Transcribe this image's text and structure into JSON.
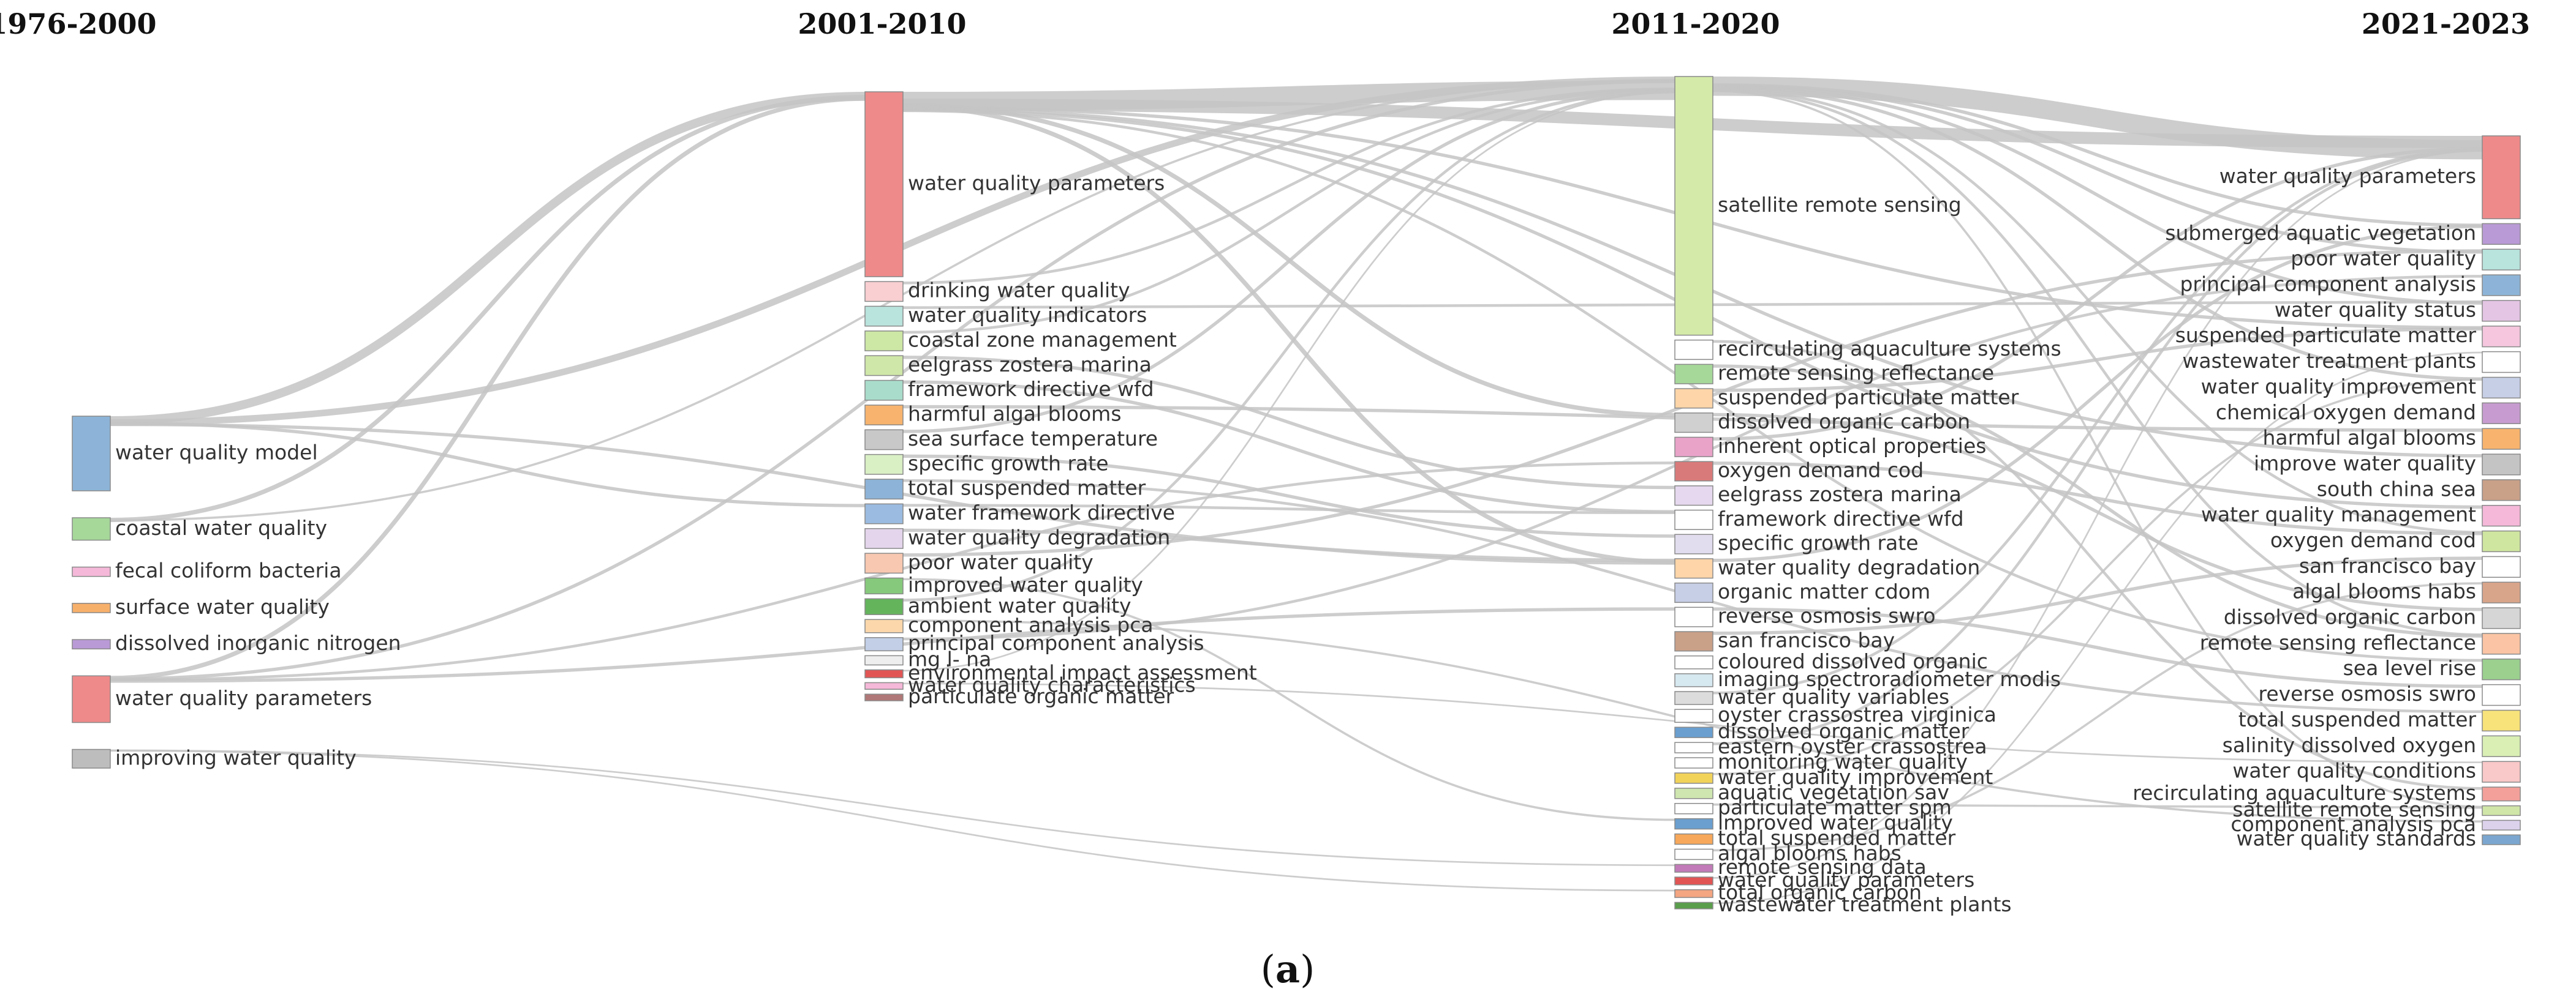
{
  "caption": {
    "prefix": "(",
    "letter": "a",
    "suffix": ")"
  },
  "columns": [
    {
      "period": "1976-2000",
      "nodes": [
        {
          "label": "water quality model",
          "value": 4,
          "color": "#8db4d8"
        },
        {
          "label": "coastal water quality",
          "value": 1.2,
          "color": "#a6d89a"
        },
        {
          "label": "fecal coliform bacteria",
          "value": 0.5,
          "color": "#f5b8d8"
        },
        {
          "label": "surface water quality",
          "value": 0.5,
          "color": "#f7b06a"
        },
        {
          "label": "dissolved inorganic nitrogen",
          "value": 0.5,
          "color": "#b99ad6"
        },
        {
          "label": "water quality parameters",
          "value": 2.5,
          "color": "#ef8a8a"
        },
        {
          "label": "improving water quality",
          "value": 1,
          "color": "#bdbdbd"
        }
      ]
    },
    {
      "period": "2001-2010",
      "nodes": [
        {
          "label": "water quality parameters",
          "value": 14,
          "color": "#ef8a8a"
        },
        {
          "label": "drinking water quality",
          "value": 1.5,
          "color": "#f9cfd2"
        },
        {
          "label": "water quality indicators",
          "value": 1.5,
          "color": "#b9e3dd"
        },
        {
          "label": "coastal zone management",
          "value": 1.5,
          "color": "#cde8a4"
        },
        {
          "label": "eelgrass zostera marina",
          "value": 1.5,
          "color": "#cfe7a8"
        },
        {
          "label": "framework directive wfd",
          "value": 1.5,
          "color": "#a9dccb"
        },
        {
          "label": "harmful algal blooms",
          "value": 1.5,
          "color": "#f8b46e"
        },
        {
          "label": "sea surface temperature",
          "value": 1.5,
          "color": "#c8c8c8"
        },
        {
          "label": "specific growth rate",
          "value": 1.5,
          "color": "#d9efc4"
        },
        {
          "label": "total suspended matter",
          "value": 1.5,
          "color": "#8db4d8"
        },
        {
          "label": "water framework directive",
          "value": 1.5,
          "color": "#9bbbe0"
        },
        {
          "label": "water quality degradation",
          "value": 1.5,
          "color": "#e4d5ec"
        },
        {
          "label": "poor water quality",
          "value": 1.5,
          "color": "#f8c8b0"
        },
        {
          "label": "improved water quality",
          "value": 1.2,
          "color": "#86c97c"
        },
        {
          "label": "ambient water quality",
          "value": 1.2,
          "color": "#64b45c"
        },
        {
          "label": "component analysis pca",
          "value": 1,
          "color": "#fbd7ab"
        },
        {
          "label": "principal component analysis",
          "value": 1,
          "color": "#c2cfe7"
        },
        {
          "label": "mg l- na",
          "value": 0.7,
          "color": "#eeeeee"
        },
        {
          "label": "environmental impact assessment",
          "value": 0.6,
          "color": "#e25555"
        },
        {
          "label": "water quality characteristics",
          "value": 0.5,
          "color": "#f5b8d8"
        },
        {
          "label": "particulate organic matter",
          "value": 0.5,
          "color": "#b07878"
        }
      ]
    },
    {
      "period": "2011-2020",
      "nodes": [
        {
          "label": "satellite remote sensing",
          "value": 20,
          "color": "#d4eaa8"
        },
        {
          "label": "recirculating aquaculture systems",
          "value": 1.5,
          "color": "#ffffff"
        },
        {
          "label": "remote sensing reflectance",
          "value": 1.5,
          "color": "#a6d89a"
        },
        {
          "label": "suspended particulate matter",
          "value": 1.5,
          "color": "#fdd5a8"
        },
        {
          "label": "dissolved organic carbon",
          "value": 1.5,
          "color": "#d0d0d0"
        },
        {
          "label": "inherent optical properties",
          "value": 1.5,
          "color": "#e9a3c9"
        },
        {
          "label": "oxygen demand cod",
          "value": 1.5,
          "color": "#d97a7a"
        },
        {
          "label": "eelgrass zostera marina",
          "value": 1.5,
          "color": "#e6d9ef"
        },
        {
          "label": "framework directive wfd",
          "value": 1.5,
          "color": "#ffffff"
        },
        {
          "label": "specific growth rate",
          "value": 1.5,
          "color": "#e2dcef"
        },
        {
          "label": "water quality degradation",
          "value": 1.5,
          "color": "#fdd5a8"
        },
        {
          "label": "organic matter cdom",
          "value": 1.5,
          "color": "#c6cfe6"
        },
        {
          "label": "reverse osmosis swro",
          "value": 1.5,
          "color": "#ffffff"
        },
        {
          "label": "san francisco bay",
          "value": 1.5,
          "color": "#c9a088"
        },
        {
          "label": "coloured dissolved organic",
          "value": 1,
          "color": "#ffffff"
        },
        {
          "label": "imaging spectroradiometer modis",
          "value": 1,
          "color": "#d6e8f0"
        },
        {
          "label": "water quality variables",
          "value": 1,
          "color": "#dcdcdc"
        },
        {
          "label": "oyster crassostrea virginica",
          "value": 1,
          "color": "#ffffff"
        },
        {
          "label": "dissolved organic matter",
          "value": 0.8,
          "color": "#6a9fd0"
        },
        {
          "label": "eastern oyster crassostrea",
          "value": 0.8,
          "color": "#ffffff"
        },
        {
          "label": "monitoring water quality",
          "value": 0.8,
          "color": "#ffffff"
        },
        {
          "label": "water quality improvement",
          "value": 0.8,
          "color": "#f2d35a"
        },
        {
          "label": "aquatic vegetation sav",
          "value": 0.8,
          "color": "#cfe6b0"
        },
        {
          "label": "particulate matter spm",
          "value": 0.8,
          "color": "#ffffff"
        },
        {
          "label": "improved water quality",
          "value": 0.8,
          "color": "#6a9fd0"
        },
        {
          "label": "total suspended matter",
          "value": 0.8,
          "color": "#f7a85a"
        },
        {
          "label": "algal blooms habs",
          "value": 0.8,
          "color": "#ffffff"
        },
        {
          "label": "remote sensing data",
          "value": 0.6,
          "color": "#c27bb8"
        },
        {
          "label": "water quality parameters",
          "value": 0.6,
          "color": "#e25555"
        },
        {
          "label": "total organic carbon",
          "value": 0.6,
          "color": "#f4a582"
        },
        {
          "label": "wastewater treatment plants",
          "value": 0.5,
          "color": "#5a9e4c"
        }
      ]
    },
    {
      "period": "2021-2023",
      "nodes": [
        {
          "label": "water quality parameters",
          "value": 6,
          "color": "#ef8a8a"
        },
        {
          "label": "submerged aquatic vegetation",
          "value": 1.5,
          "color": "#b99ad6"
        },
        {
          "label": "poor water quality",
          "value": 1.5,
          "color": "#b9e3dd"
        },
        {
          "label": "principal component analysis",
          "value": 1.5,
          "color": "#8db4d8"
        },
        {
          "label": "water quality status",
          "value": 1.5,
          "color": "#e4c5e4"
        },
        {
          "label": "suspended particulate matter",
          "value": 1.5,
          "color": "#f5c6de"
        },
        {
          "label": "wastewater treatment plants",
          "value": 1.5,
          "color": "#ffffff"
        },
        {
          "label": "water quality improvement",
          "value": 1.5,
          "color": "#c6cfe6"
        },
        {
          "label": "chemical oxygen demand",
          "value": 1.5,
          "color": "#c79bd0"
        },
        {
          "label": "harmful algal blooms",
          "value": 1.5,
          "color": "#f8b46e"
        },
        {
          "label": "improve water quality",
          "value": 1.5,
          "color": "#c4c4c4"
        },
        {
          "label": "south china sea",
          "value": 1.5,
          "color": "#c9a088"
        },
        {
          "label": "water quality management",
          "value": 1.5,
          "color": "#f5b8d8"
        },
        {
          "label": "oxygen demand cod",
          "value": 1.5,
          "color": "#cfe6a0"
        },
        {
          "label": "san francisco bay",
          "value": 1.5,
          "color": "#ffffff"
        },
        {
          "label": "algal blooms habs",
          "value": 1.5,
          "color": "#d9a58a"
        },
        {
          "label": "dissolved organic carbon",
          "value": 1.5,
          "color": "#d6d6d6"
        },
        {
          "label": "remote sensing reflectance",
          "value": 1.5,
          "color": "#fbc4a4"
        },
        {
          "label": "sea level rise",
          "value": 1.5,
          "color": "#9bd08f"
        },
        {
          "label": "reverse osmosis swro",
          "value": 1.5,
          "color": "#ffffff"
        },
        {
          "label": "total suspended matter",
          "value": 1.5,
          "color": "#f7e37a"
        },
        {
          "label": "salinity dissolved oxygen",
          "value": 1.5,
          "color": "#d9efb4"
        },
        {
          "label": "water quality conditions",
          "value": 1.5,
          "color": "#f9c8c8"
        },
        {
          "label": "recirculating aquaculture systems",
          "value": 1,
          "color": "#f3a09a"
        },
        {
          "label": "satellite remote sensing",
          "value": 0.7,
          "color": "#cfe6a8"
        },
        {
          "label": "component analysis pca",
          "value": 0.7,
          "color": "#dcd2ec"
        },
        {
          "label": "water quality standards",
          "value": 0.7,
          "color": "#7aa6cf"
        }
      ]
    }
  ],
  "links": [
    {
      "source": "0:0",
      "target": "1:0",
      "value": 1.6
    },
    {
      "source": "0:0",
      "target": "2:0",
      "value": 1.2
    },
    {
      "source": "0:0",
      "target": "1:10",
      "value": 0.6
    },
    {
      "source": "0:0",
      "target": "2:10",
      "value": 0.6
    },
    {
      "source": "0:1",
      "target": "1:0",
      "value": 0.8
    },
    {
      "source": "0:1",
      "target": "2:0",
      "value": 0.4
    },
    {
      "source": "0:5",
      "target": "1:0",
      "value": 0.8
    },
    {
      "source": "0:5",
      "target": "2:0",
      "value": 0.6
    },
    {
      "source": "0:5",
      "target": "2:6",
      "value": 0.5
    },
    {
      "source": "0:5",
      "target": "2:12",
      "value": 0.6
    },
    {
      "source": "0:6",
      "target": "2:27",
      "value": 0.3
    },
    {
      "source": "0:6",
      "target": "2:29",
      "value": 0.3
    },
    {
      "source": "1:0",
      "target": "2:0",
      "value": 3.5
    },
    {
      "source": "1:0",
      "target": "3:0",
      "value": 2.2
    },
    {
      "source": "1:0",
      "target": "2:4",
      "value": 0.8
    },
    {
      "source": "1:0",
      "target": "2:10",
      "value": 0.8
    },
    {
      "source": "1:0",
      "target": "3:5",
      "value": 0.6
    },
    {
      "source": "1:0",
      "target": "3:10",
      "value": 0.6
    },
    {
      "source": "1:0",
      "target": "3:12",
      "value": 0.6
    },
    {
      "source": "1:0",
      "target": "3:18",
      "value": 0.5
    },
    {
      "source": "1:1",
      "target": "2:0",
      "value": 0.5
    },
    {
      "source": "1:2",
      "target": "3:4",
      "value": 0.5
    },
    {
      "source": "1:3",
      "target": "2:0",
      "value": 0.5
    },
    {
      "source": "1:4",
      "target": "2:7",
      "value": 0.6
    },
    {
      "source": "1:5",
      "target": "2:8",
      "value": 0.6
    },
    {
      "source": "1:6",
      "target": "3:9",
      "value": 0.6
    },
    {
      "source": "1:7",
      "target": "2:0",
      "value": 0.6
    },
    {
      "source": "1:8",
      "target": "2:9",
      "value": 0.6
    },
    {
      "source": "1:9",
      "target": "3:20",
      "value": 0.5
    },
    {
      "source": "1:10",
      "target": "2:8",
      "value": 0.5
    },
    {
      "source": "1:11",
      "target": "2:10",
      "value": 0.6
    },
    {
      "source": "1:12",
      "target": "3:2",
      "value": 0.6
    },
    {
      "source": "1:13",
      "target": "2:24",
      "value": 0.4
    },
    {
      "source": "1:14",
      "target": "2:0",
      "value": 0.5
    },
    {
      "source": "1:15",
      "target": "3:25",
      "value": 0.4
    },
    {
      "source": "1:16",
      "target": "3:3",
      "value": 0.5
    },
    {
      "source": "1:18",
      "target": "2:0",
      "value": 0.3
    },
    {
      "source": "1:19",
      "target": "3:22",
      "value": 0.3
    },
    {
      "source": "2:0",
      "target": "3:0",
      "value": 3.5
    },
    {
      "source": "2:0",
      "target": "3:1",
      "value": 0.6
    },
    {
      "source": "2:0",
      "target": "3:2",
      "value": 0.6
    },
    {
      "source": "2:0",
      "target": "3:4",
      "value": 0.6
    },
    {
      "source": "2:0",
      "target": "3:7",
      "value": 0.6
    },
    {
      "source": "2:0",
      "target": "3:13",
      "value": 0.5
    },
    {
      "source": "2:0",
      "target": "3:17",
      "value": 0.5
    },
    {
      "source": "2:0",
      "target": "3:24",
      "value": 0.4
    },
    {
      "source": "2:1",
      "target": "3:23",
      "value": 0.5
    },
    {
      "source": "2:2",
      "target": "3:17",
      "value": 0.6
    },
    {
      "source": "2:3",
      "target": "3:5",
      "value": 0.6
    },
    {
      "source": "2:4",
      "target": "3:16",
      "value": 0.6
    },
    {
      "source": "2:5",
      "target": "3:0",
      "value": 0.6
    },
    {
      "source": "2:6",
      "target": "3:13",
      "value": 0.6
    },
    {
      "source": "2:10",
      "target": "3:1",
      "value": 0.6
    },
    {
      "source": "2:12",
      "target": "3:19",
      "value": 0.6
    },
    {
      "source": "2:13",
      "target": "3:14",
      "value": 0.6
    },
    {
      "source": "2:16",
      "target": "3:0",
      "value": 0.5
    },
    {
      "source": "2:19",
      "target": "3:0",
      "value": 0.5
    },
    {
      "source": "2:21",
      "target": "3:7",
      "value": 0.4
    },
    {
      "source": "2:23",
      "target": "3:24",
      "value": 0.4
    },
    {
      "source": "2:26",
      "target": "3:15",
      "value": 0.4
    },
    {
      "source": "2:28",
      "target": "3:0",
      "value": 0.3
    },
    {
      "source": "2:30",
      "target": "3:6",
      "value": 0.3
    }
  ]
}
